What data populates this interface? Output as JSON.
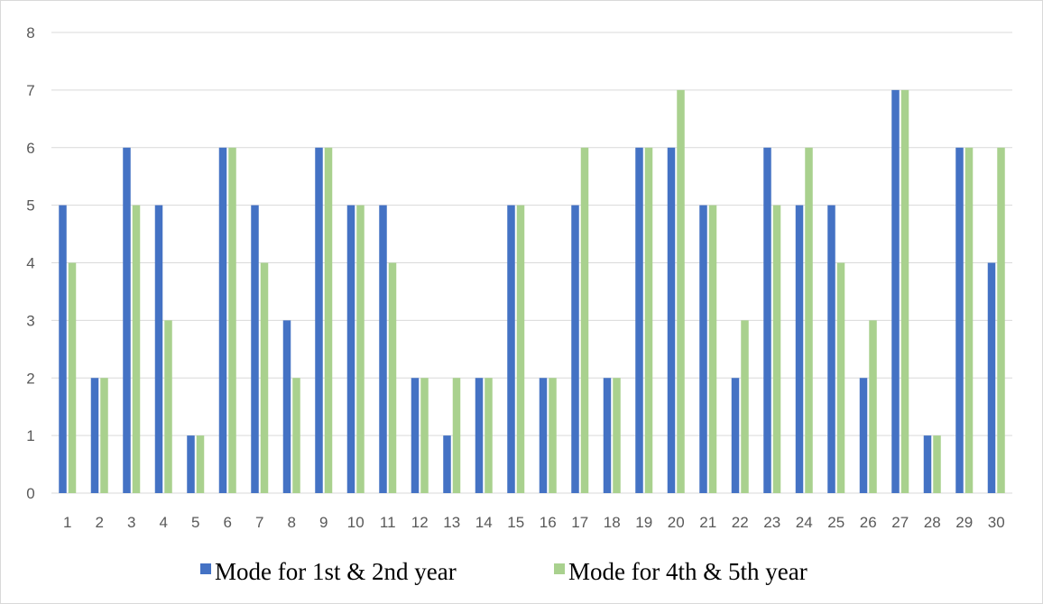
{
  "chart_data": {
    "type": "bar",
    "categories": [
      "1",
      "2",
      "3",
      "4",
      "5",
      "6",
      "7",
      "8",
      "9",
      "10",
      "11",
      "12",
      "13",
      "14",
      "15",
      "16",
      "17",
      "18",
      "19",
      "20",
      "21",
      "22",
      "23",
      "24",
      "25",
      "26",
      "27",
      "28",
      "29",
      "30"
    ],
    "series": [
      {
        "name": "Mode for 1st & 2nd year",
        "color": "#4472C4",
        "values": [
          5,
          2,
          6,
          5,
          1,
          6,
          5,
          3,
          6,
          5,
          5,
          2,
          1,
          2,
          5,
          2,
          5,
          2,
          6,
          6,
          5,
          2,
          6,
          5,
          5,
          2,
          7,
          1,
          6,
          4
        ]
      },
      {
        "name": "Mode for 4th & 5th year",
        "color": "#A9D18E",
        "values": [
          4,
          2,
          5,
          3,
          1,
          6,
          4,
          2,
          6,
          5,
          4,
          2,
          2,
          2,
          5,
          2,
          6,
          2,
          6,
          7,
          5,
          3,
          5,
          6,
          4,
          3,
          7,
          1,
          6,
          6
        ]
      }
    ],
    "yticks": [
      "0",
      "1",
      "2",
      "3",
      "4",
      "5",
      "6",
      "7",
      "8"
    ],
    "ylim": [
      0,
      8
    ],
    "grid": true,
    "gridColor": "#d9d9d9",
    "legend_position": "bottom"
  }
}
